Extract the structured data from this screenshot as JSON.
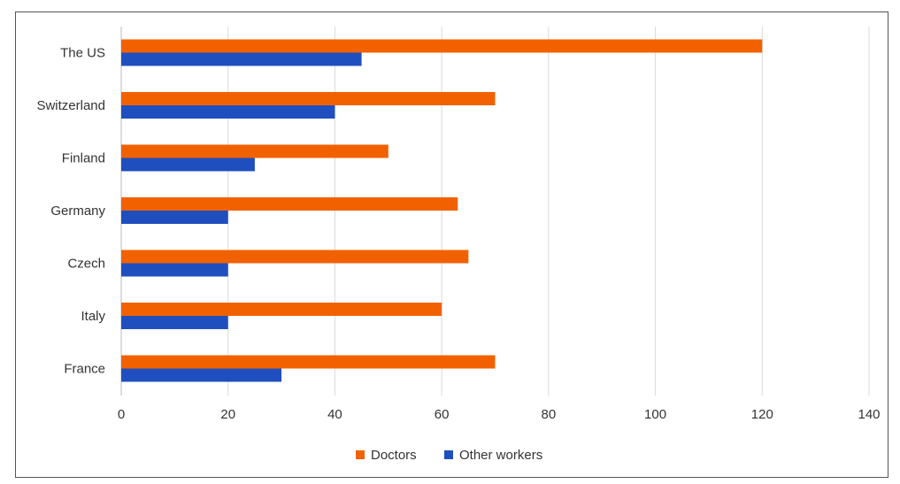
{
  "chart_data": {
    "type": "bar",
    "orientation": "horizontal",
    "title": "",
    "xlabel": "",
    "ylabel": "",
    "categories": [
      "The US",
      "Switzerland",
      "Finland",
      "Germany",
      "Czech",
      "Italy",
      "France"
    ],
    "series": [
      {
        "name": "Doctors",
        "color": "#F26100",
        "values": [
          120,
          70,
          50,
          63,
          65,
          60,
          70
        ]
      },
      {
        "name": "Other workers",
        "color": "#1F4FBF",
        "values": [
          45,
          40,
          25,
          20,
          20,
          20,
          30
        ]
      }
    ],
    "xlim": [
      0,
      140
    ],
    "xticks": [
      0,
      20,
      40,
      60,
      80,
      100,
      120,
      140
    ],
    "grid": true,
    "legend_position": "bottom"
  }
}
